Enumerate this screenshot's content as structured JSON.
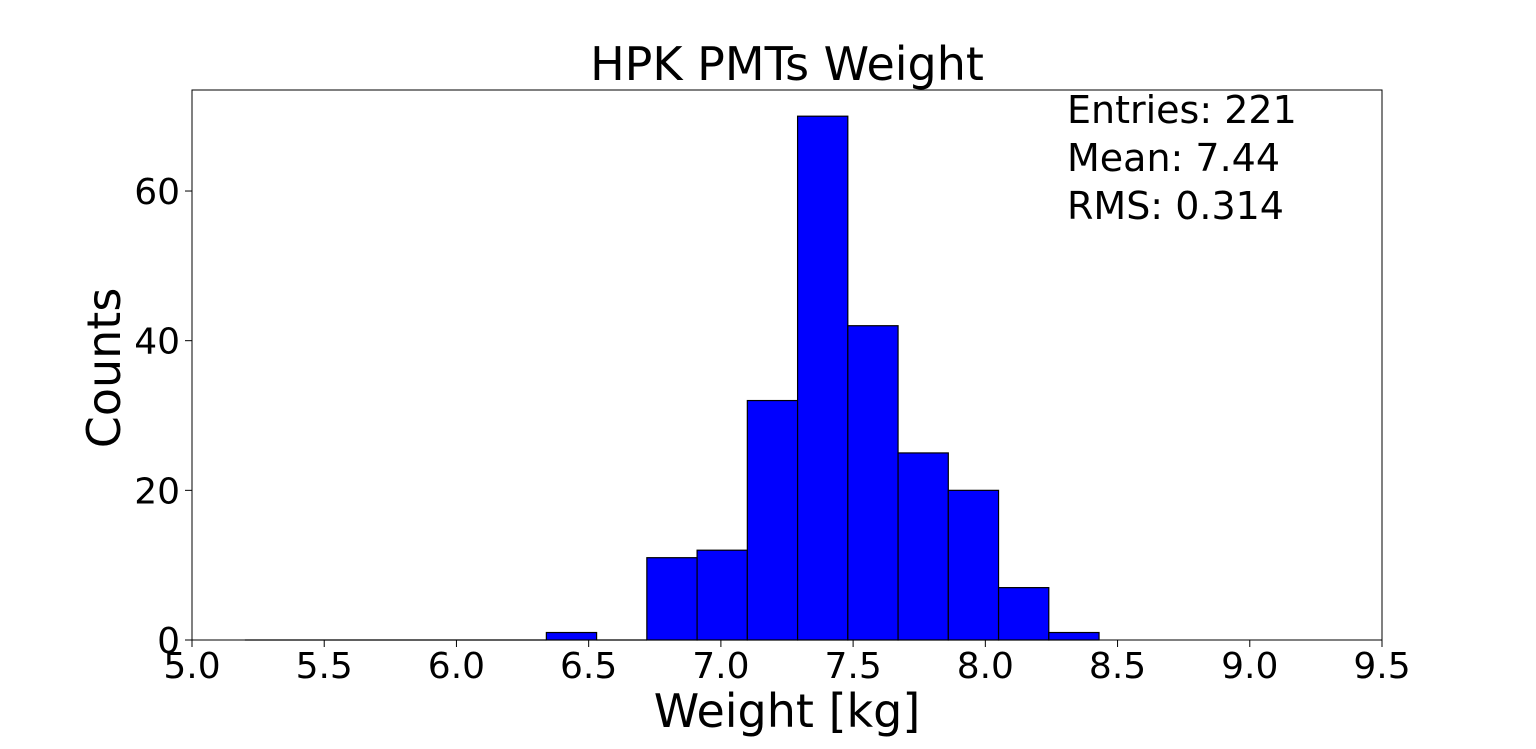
{
  "chart_data": {
    "type": "bar",
    "title": "HPK PMTs Weight",
    "xlabel": "Weight [kg]",
    "ylabel": "Counts",
    "xlim": [
      5.0,
      9.5
    ],
    "ylim": [
      0,
      73.5
    ],
    "xticks": [
      "5.0",
      "5.5",
      "6.0",
      "6.5",
      "7.0",
      "7.5",
      "8.0",
      "8.5",
      "9.0",
      "9.5"
    ],
    "yticks": [
      "0",
      "20",
      "40",
      "60"
    ],
    "bar_color": "#0000ff",
    "bin_width": 0.19,
    "bins": [
      {
        "x0": 5.2,
        "count": 0
      },
      {
        "x0": 5.39,
        "count": 0
      },
      {
        "x0": 5.58,
        "count": 0
      },
      {
        "x0": 5.77,
        "count": 0
      },
      {
        "x0": 5.96,
        "count": 0
      },
      {
        "x0": 6.15,
        "count": 0
      },
      {
        "x0": 6.34,
        "count": 1
      },
      {
        "x0": 6.53,
        "count": 0
      },
      {
        "x0": 6.72,
        "count": 11
      },
      {
        "x0": 6.91,
        "count": 12
      },
      {
        "x0": 7.1,
        "count": 32
      },
      {
        "x0": 7.29,
        "count": 70
      },
      {
        "x0": 7.48,
        "count": 42
      },
      {
        "x0": 7.67,
        "count": 25
      },
      {
        "x0": 7.86,
        "count": 20
      },
      {
        "x0": 8.05,
        "count": 7
      },
      {
        "x0": 8.24,
        "count": 1
      }
    ],
    "stats": {
      "entries": "Entries: 221",
      "mean": "Mean: 7.44",
      "rms": "RMS: 0.314"
    },
    "grid": false,
    "legend": "none"
  }
}
